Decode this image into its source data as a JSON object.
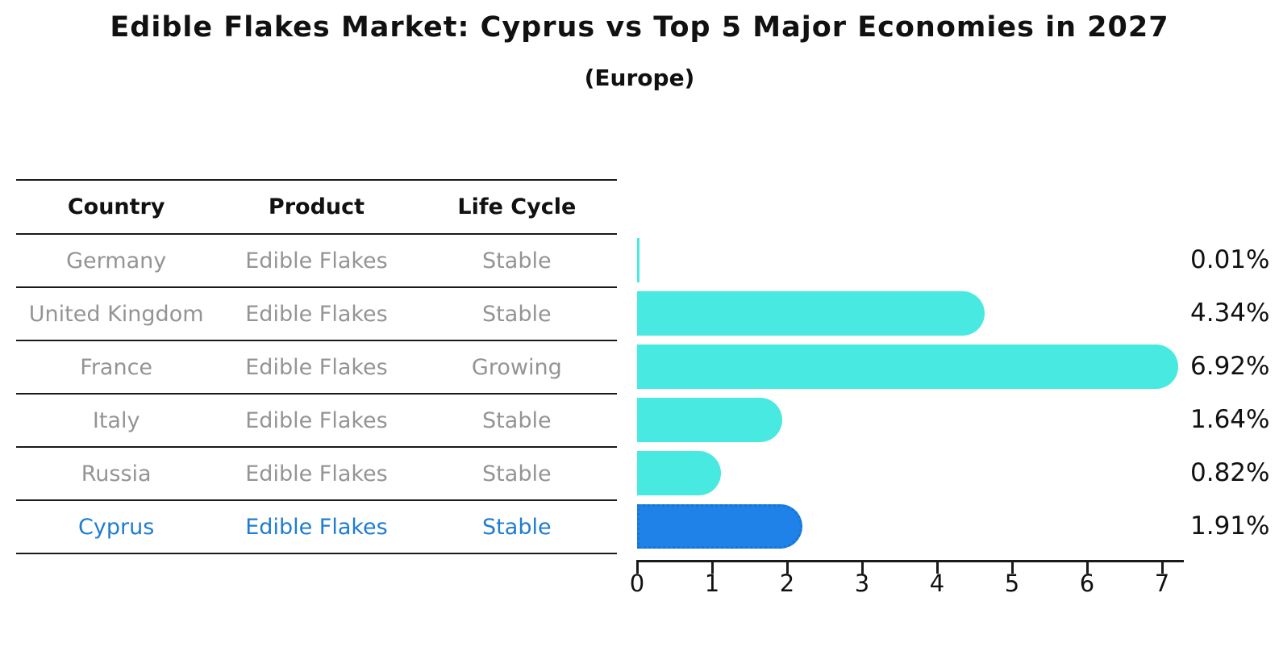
{
  "title": "Edible Flakes Market: Cyprus vs Top 5 Major Economies in 2027",
  "subtitle": "(Europe)",
  "table": {
    "headers": [
      "Country",
      "Product",
      "Life Cycle"
    ],
    "rows": [
      {
        "country": "Germany",
        "product": "Edible Flakes",
        "life_cycle": "Stable",
        "highlighted": false
      },
      {
        "country": "United Kingdom",
        "product": "Edible Flakes",
        "life_cycle": "Stable",
        "highlighted": false
      },
      {
        "country": "France",
        "product": "Edible Flakes",
        "life_cycle": "Growing",
        "highlighted": false
      },
      {
        "country": "Italy",
        "product": "Edible Flakes",
        "life_cycle": "Stable",
        "highlighted": false
      },
      {
        "country": "Russia",
        "product": "Edible Flakes",
        "life_cycle": "Stable",
        "highlighted": true
      }
    ],
    "highlight_row": {
      "country": "Cyprus",
      "product": "Edible Flakes",
      "life_cycle": "Stable"
    }
  },
  "chart_data": {
    "type": "bar",
    "orientation": "horizontal",
    "categories": [
      "Germany",
      "United Kingdom",
      "France",
      "Italy",
      "Russia",
      "Cyprus"
    ],
    "values": [
      0.01,
      4.34,
      6.92,
      1.64,
      0.82,
      1.91
    ],
    "labels": [
      "0.01%",
      "4.34%",
      "6.92%",
      "1.64%",
      "0.82%",
      "1.91%"
    ],
    "x_ticks": [
      "0",
      "1",
      "2",
      "3",
      "4",
      "5",
      "6",
      "7"
    ],
    "xlim": [
      0,
      7.3
    ],
    "grid": false,
    "legend": false,
    "highlight_index": 5
  },
  "colors": {
    "bar": "#48e9e0",
    "highlight_bar": "#1e82e8",
    "highlight_border": "#1a74d4",
    "highlight_text": "#1f7ccf",
    "muted_text": "#949494",
    "text": "#111111",
    "line": "#1a1a1a"
  }
}
